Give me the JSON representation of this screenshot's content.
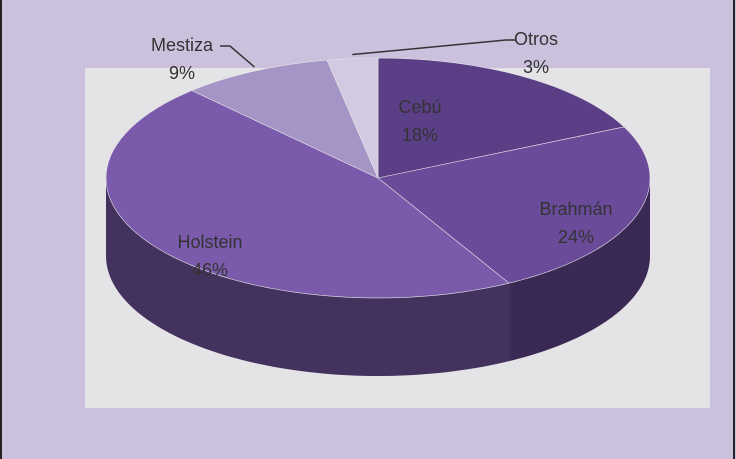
{
  "chart_data": {
    "type": "pie",
    "categories": [
      "Cebú",
      "Brahmán",
      "Holstein",
      "Mestiza",
      "Otros"
    ],
    "values": [
      18,
      24,
      46,
      9,
      3
    ],
    "value_labels": [
      "18%",
      "24%",
      "46%",
      "9%",
      "3%"
    ],
    "colors": [
      "#5b3f86",
      "#6a4b9a",
      "#7a5aab",
      "#a594c6",
      "#d2c9e3"
    ]
  }
}
